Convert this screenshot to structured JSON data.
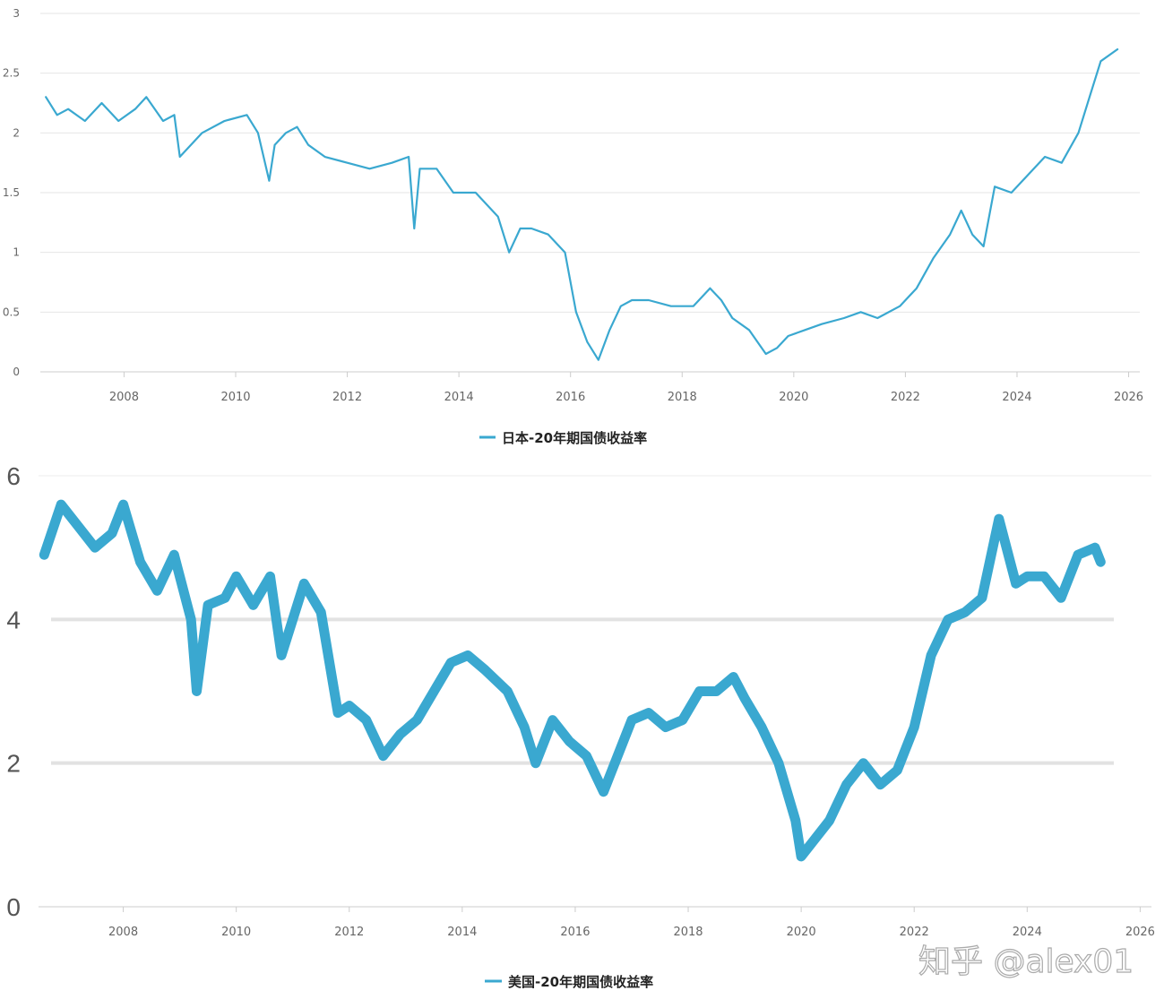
{
  "chart_data": [
    {
      "type": "line",
      "xlim": [
        2006.5,
        2026.2
      ],
      "ylim": [
        0,
        3
      ],
      "yticks": [
        "0",
        "0.5",
        "1",
        "1.5",
        "2",
        "2.5",
        "3"
      ],
      "xticks": [
        "2008",
        "2010",
        "2012",
        "2014",
        "2016",
        "2018",
        "2020",
        "2022",
        "2024",
        "2026"
      ],
      "grid": true,
      "legend_position": "bottom-center",
      "color": "#3aa8d0",
      "series": [
        {
          "name": "日本-20年期国债收益率",
          "x": [
            2006.6,
            2006.8,
            2007.0,
            2007.3,
            2007.6,
            2007.9,
            2008.2,
            2008.4,
            2008.7,
            2008.9,
            2009.0,
            2009.4,
            2009.8,
            2010.2,
            2010.4,
            2010.6,
            2010.7,
            2010.9,
            2011.1,
            2011.3,
            2011.6,
            2012.0,
            2012.4,
            2012.8,
            2013.1,
            2013.2,
            2013.3,
            2013.6,
            2013.9,
            2014.3,
            2014.7,
            2014.9,
            2015.1,
            2015.3,
            2015.6,
            2015.9,
            2016.1,
            2016.3,
            2016.5,
            2016.7,
            2016.9,
            2017.1,
            2017.4,
            2017.8,
            2018.2,
            2018.5,
            2018.7,
            2018.9,
            2019.2,
            2019.5,
            2019.7,
            2019.9,
            2020.2,
            2020.5,
            2020.9,
            2021.2,
            2021.5,
            2021.9,
            2022.2,
            2022.5,
            2022.8,
            2023.0,
            2023.2,
            2023.4,
            2023.6,
            2023.9,
            2024.2,
            2024.5,
            2024.8,
            2025.1,
            2025.3,
            2025.5,
            2025.8
          ],
          "values": [
            2.3,
            2.15,
            2.2,
            2.1,
            2.25,
            2.1,
            2.2,
            2.3,
            2.1,
            2.15,
            1.8,
            2.0,
            2.1,
            2.15,
            2.0,
            1.6,
            1.9,
            2.0,
            2.05,
            1.9,
            1.8,
            1.75,
            1.7,
            1.75,
            1.8,
            1.2,
            1.7,
            1.7,
            1.5,
            1.5,
            1.3,
            1.0,
            1.2,
            1.2,
            1.15,
            1.0,
            0.5,
            0.25,
            0.1,
            0.35,
            0.55,
            0.6,
            0.6,
            0.55,
            0.55,
            0.7,
            0.6,
            0.45,
            0.35,
            0.15,
            0.2,
            0.3,
            0.35,
            0.4,
            0.45,
            0.5,
            0.45,
            0.55,
            0.7,
            0.95,
            1.15,
            1.35,
            1.15,
            1.05,
            1.55,
            1.5,
            1.65,
            1.8,
            1.75,
            2.0,
            2.3,
            2.6,
            2.7
          ]
        }
      ]
    },
    {
      "type": "line",
      "xlim": [
        2006.5,
        2026.2
      ],
      "ylim": [
        0,
        6.2
      ],
      "yticks": [
        "0",
        "2",
        "4",
        "6"
      ],
      "xticks": [
        "2008",
        "2010",
        "2012",
        "2014",
        "2016",
        "2018",
        "2020",
        "2022",
        "2024",
        "2026"
      ],
      "grid": true,
      "legend_position": "bottom-center",
      "color": "#3aa8d0",
      "series": [
        {
          "name": "美国-20年期国债收益率",
          "x": [
            2006.6,
            2006.9,
            2007.2,
            2007.5,
            2007.8,
            2008.0,
            2008.3,
            2008.6,
            2008.9,
            2009.0,
            2009.2,
            2009.3,
            2009.5,
            2009.8,
            2010.0,
            2010.3,
            2010.6,
            2010.8,
            2011.0,
            2011.2,
            2011.5,
            2011.8,
            2012.0,
            2012.3,
            2012.6,
            2012.9,
            2013.2,
            2013.5,
            2013.8,
            2014.1,
            2014.4,
            2014.8,
            2015.1,
            2015.3,
            2015.6,
            2015.9,
            2016.2,
            2016.5,
            2016.8,
            2017.0,
            2017.3,
            2017.6,
            2017.9,
            2018.2,
            2018.5,
            2018.8,
            2019.0,
            2019.3,
            2019.6,
            2019.9,
            2020.0,
            2020.2,
            2020.5,
            2020.8,
            2021.1,
            2021.4,
            2021.7,
            2022.0,
            2022.3,
            2022.6,
            2022.9,
            2023.2,
            2023.5,
            2023.8,
            2024.0,
            2024.3,
            2024.6,
            2024.9,
            2025.2,
            2025.3
          ],
          "values": [
            4.9,
            5.6,
            5.3,
            5.0,
            5.2,
            5.6,
            4.8,
            4.4,
            4.9,
            4.6,
            4.0,
            3.0,
            4.2,
            4.3,
            4.6,
            4.2,
            4.6,
            3.5,
            4.0,
            4.5,
            4.1,
            2.7,
            2.8,
            2.6,
            2.1,
            2.4,
            2.6,
            3.0,
            3.4,
            3.5,
            3.3,
            3.0,
            2.5,
            2.0,
            2.6,
            2.3,
            2.1,
            1.6,
            2.2,
            2.6,
            2.7,
            2.5,
            2.6,
            3.0,
            3.0,
            3.2,
            2.9,
            2.5,
            2.0,
            1.2,
            0.7,
            0.9,
            1.2,
            1.7,
            2.0,
            1.7,
            1.9,
            2.5,
            3.5,
            4.0,
            4.1,
            4.3,
            5.4,
            4.5,
            4.6,
            4.6,
            4.3,
            4.9,
            5.0,
            4.8
          ]
        }
      ]
    }
  ],
  "watermark": "知乎 @alex01"
}
